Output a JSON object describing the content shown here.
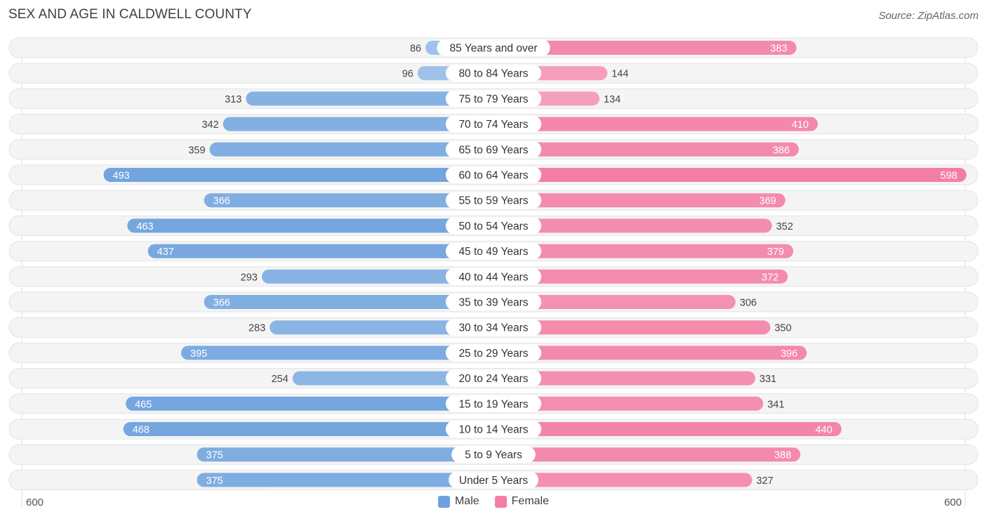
{
  "title": "SEX AND AGE IN CALDWELL COUNTY",
  "source": "Source: ZipAtlas.com",
  "colors": {
    "male": "#6fa2dd",
    "female": "#f27fa3",
    "male_light": "#a9c9ec",
    "female_light": "#f7aac3",
    "row_bg": "#efefef"
  },
  "chart_data": {
    "type": "bar",
    "orientation": "horizontal-diverging",
    "categories": [
      "85 Years and over",
      "80 to 84 Years",
      "75 to 79 Years",
      "70 to 74 Years",
      "65 to 69 Years",
      "60 to 64 Years",
      "55 to 59 Years",
      "50 to 54 Years",
      "45 to 49 Years",
      "40 to 44 Years",
      "35 to 39 Years",
      "30 to 34 Years",
      "25 to 29 Years",
      "20 to 24 Years",
      "15 to 19 Years",
      "10 to 14 Years",
      "5 to 9 Years",
      "Under 5 Years"
    ],
    "series": [
      {
        "name": "Male",
        "values": [
          86,
          96,
          313,
          342,
          359,
          493,
          366,
          463,
          437,
          293,
          366,
          283,
          395,
          254,
          465,
          468,
          375,
          375
        ]
      },
      {
        "name": "Female",
        "values": [
          383,
          144,
          134,
          410,
          386,
          598,
          369,
          352,
          379,
          372,
          306,
          350,
          396,
          331,
          341,
          440,
          388,
          327
        ]
      }
    ],
    "axis": {
      "left_label": "600",
      "right_label": "600",
      "max": 600
    },
    "legend": {
      "position": "bottom-center",
      "items": [
        "Male",
        "Female"
      ]
    }
  }
}
